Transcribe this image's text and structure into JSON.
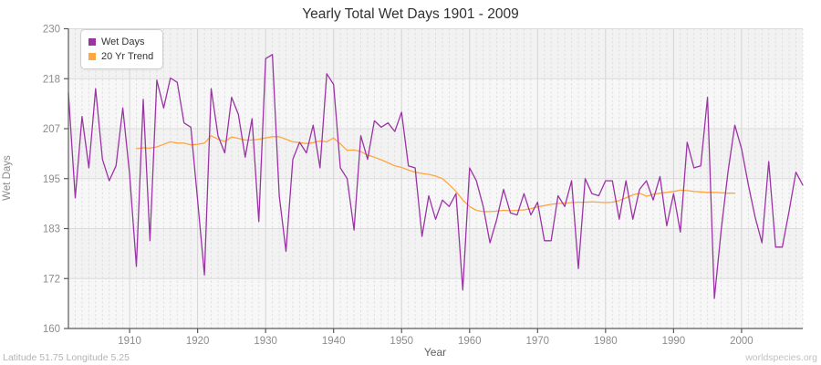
{
  "header": {
    "title": "Yearly Total Wet Days 1901 - 2009"
  },
  "footer": {
    "left": "Latitude 51.75 Longitude 5.25",
    "right": "worldspecies.org"
  },
  "legend": {
    "items": [
      {
        "label": "Wet Days",
        "color": "#9B33A5"
      },
      {
        "label": "20 Yr Trend",
        "color": "#FFA640"
      }
    ]
  },
  "chart_data": {
    "type": "line",
    "title": "Yearly Total Wet Days 1901 - 2009",
    "xlabel": "Year",
    "ylabel": "Wet Days",
    "xlim": [
      1901,
      2009
    ],
    "ylim": [
      160,
      230
    ],
    "y_tick_labels": [
      "160",
      "172",
      "183",
      "195",
      "207",
      "218",
      "230"
    ],
    "x_ticks": [
      1910,
      1920,
      1930,
      1940,
      1950,
      1960,
      1970,
      1980,
      1990,
      2000
    ],
    "grid": {
      "on": true,
      "band_colors": [
        "#f2f2f2",
        "#f7f7f7"
      ],
      "minor_v_color": "#dcdcdc",
      "major_v_color": "#d4d4d4",
      "major_h_color": "#dadada",
      "axis_color": "#5a5a5a",
      "tick_label_color": "#8c8c8c"
    },
    "legend_position": "top-left",
    "series": [
      {
        "name": "Wet Days",
        "color": "#9B33A5",
        "start_year": 1901,
        "values": [
          215,
          190.5,
          209.5,
          197.5,
          216,
          199.5,
          194.5,
          198,
          211.5,
          196,
          174.5,
          213.5,
          180.5,
          218,
          211.5,
          218.5,
          217.5,
          208,
          207,
          190,
          172.5,
          216,
          205,
          201,
          214,
          210,
          200,
          209,
          185,
          223,
          224,
          191,
          178,
          199.5,
          203.5,
          201,
          207.5,
          197.5,
          219.5,
          217,
          197.5,
          195,
          183,
          205,
          199.5,
          208.5,
          207,
          208,
          206,
          210.5,
          198,
          197.5,
          181.5,
          191,
          185.5,
          190,
          188.5,
          191.5,
          169,
          197.5,
          194.5,
          188.5,
          180,
          185.5,
          192.5,
          187,
          186.5,
          191.5,
          186.5,
          189.5,
          180.5,
          180.5,
          191,
          188.5,
          194.5,
          174,
          195,
          191.5,
          191,
          194.5,
          194.5,
          185.5,
          194.5,
          185.5,
          192.5,
          194.5,
          190,
          195.5,
          184,
          191.5,
          182.5,
          203.5,
          197.5,
          198,
          214,
          167,
          183,
          196.5,
          207.5,
          202,
          193.5,
          186,
          180,
          199,
          179,
          179,
          187.5,
          196.5,
          193.5
        ]
      },
      {
        "name": "20 Yr Trend",
        "color": "#FFA640",
        "start_year": 1911,
        "values": [
          202,
          202.2,
          202.1,
          202.4,
          203,
          203.6,
          203.3,
          203.3,
          202.9,
          203,
          203.3,
          205,
          204.2,
          203.7,
          204.7,
          204.4,
          204,
          204,
          204.2,
          204.5,
          204.8,
          204.8,
          204.2,
          203.6,
          203.4,
          203.2,
          203.4,
          203.8,
          203.6,
          204.5,
          203.1,
          201.6,
          201.7,
          201.3,
          200.5,
          200,
          199.4,
          198.7,
          198,
          197.6,
          197,
          196.5,
          196.2,
          196,
          195.6,
          195,
          193.6,
          192,
          190,
          188.5,
          187.6,
          187.3,
          187.3,
          187.4,
          187.6,
          187.5,
          187.6,
          187.7,
          188,
          188.4,
          188.7,
          189,
          189.2,
          189.3,
          189.4,
          189.5,
          189.5,
          189.6,
          189.5,
          189.4,
          189.5,
          189.9,
          190.5,
          191.2,
          191.6,
          190.9,
          191.3,
          191.6,
          191.8,
          192,
          192.3,
          192.2,
          192,
          191.9,
          191.8,
          191.8,
          191.7,
          191.6,
          191.6
        ]
      }
    ]
  }
}
